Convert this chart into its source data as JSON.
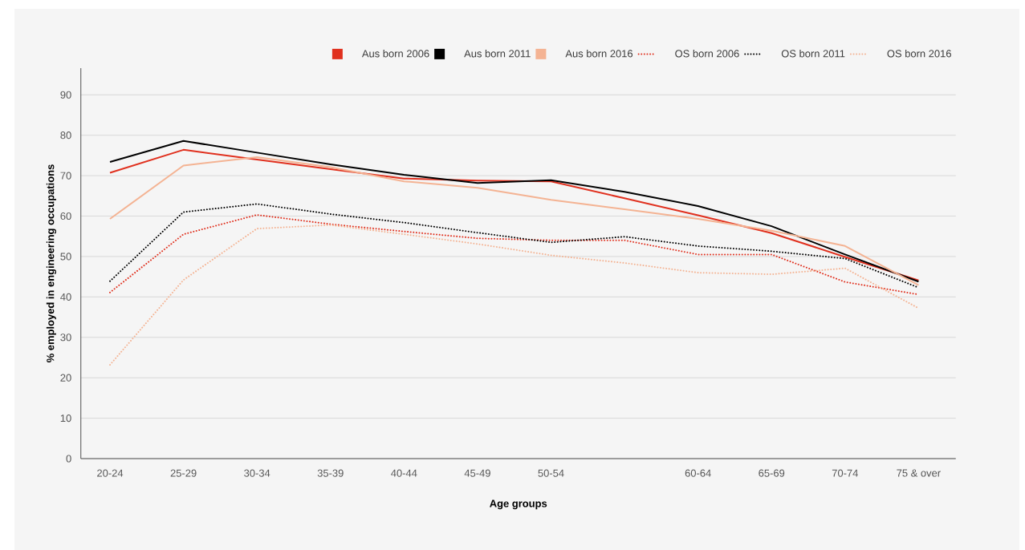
{
  "chart_data": {
    "type": "line",
    "xlabel": "Age groups",
    "ylabel": "% employed in engineering occupations",
    "categories": [
      "20-24",
      "25-29",
      "30-34",
      "35-39",
      "40-44",
      "45-49",
      "50-54",
      null,
      "60-64",
      "65-69",
      "70-74",
      "75 & over"
    ],
    "ylim": [
      0,
      96.6
    ],
    "yticks": [
      0,
      10,
      20,
      30,
      40,
      50,
      60,
      70,
      80,
      90
    ],
    "grid": "y",
    "legend": "top right",
    "marker": "none",
    "series": [
      {
        "name": "Aus born 2006",
        "color": "#e0301e",
        "line_style": "solid",
        "values": [
          70.7,
          76.4,
          74.0,
          71.6,
          69.3,
          68.8,
          68.6,
          64.4,
          60.2,
          55.8,
          49.9,
          44.1
        ]
      },
      {
        "name": "Aus born 2011",
        "color": "#000000",
        "line_style": "solid",
        "values": [
          73.4,
          78.6,
          75.7,
          72.8,
          70.2,
          68.2,
          68.9,
          66.0,
          62.5,
          57.5,
          50.5,
          43.8
        ]
      },
      {
        "name": "Aus born 2016",
        "color": "#f4b393",
        "line_style": "solid",
        "values": [
          59.3,
          72.5,
          74.6,
          72.1,
          68.6,
          67.0,
          64.0,
          61.7,
          59.3,
          56.4,
          52.6,
          42.9
        ]
      },
      {
        "name": "OS born 2006",
        "color": "#e0301e",
        "line_style": "dotted",
        "values": [
          41.1,
          55.5,
          60.3,
          58.0,
          56.2,
          54.5,
          54.0,
          54.0,
          50.5,
          50.5,
          43.7,
          40.6
        ]
      },
      {
        "name": "OS born 2011",
        "color": "#000000",
        "line_style": "dotted",
        "values": [
          43.9,
          61.0,
          63.0,
          60.5,
          58.4,
          55.9,
          53.5,
          54.9,
          52.6,
          51.3,
          49.5,
          42.3
        ]
      },
      {
        "name": "OS born 2016",
        "color": "#f4b393",
        "line_style": "dotted",
        "values": [
          23.2,
          44.2,
          56.9,
          57.8,
          55.5,
          53.1,
          50.3,
          48.4,
          46.0,
          45.6,
          47.1,
          37.2
        ]
      }
    ]
  }
}
